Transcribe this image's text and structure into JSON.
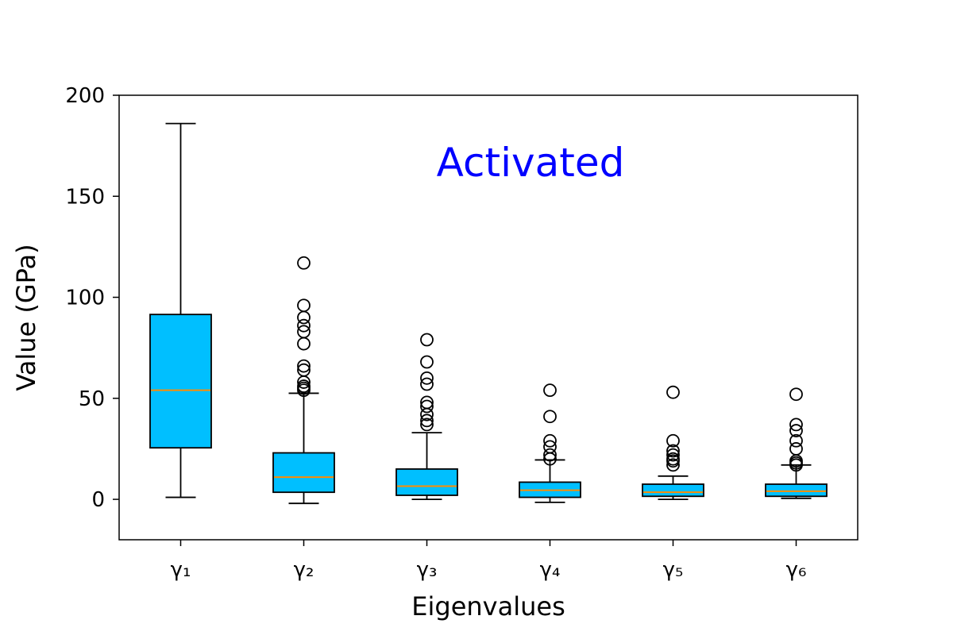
{
  "chart_data": {
    "type": "box",
    "xlabel": "Eigenvalues",
    "ylabel": "Value (GPa)",
    "annotation": "Activated",
    "ylim": [
      -20,
      200
    ],
    "yticks": [
      0,
      50,
      100,
      150,
      200
    ],
    "grid": false,
    "legend": "none",
    "box_color": "#00bfff",
    "median_color": "#ff8c00",
    "annotation_color": "#0000ff",
    "categories": [
      "γ₁",
      "γ₂",
      "γ₃",
      "γ₄",
      "γ₅",
      "γ₆"
    ],
    "boxes": [
      {
        "whisker_low": 1,
        "q1": 25.5,
        "median": 54,
        "q3": 91.5,
        "whisker_high": 186,
        "outliers": []
      },
      {
        "whisker_low": -2,
        "q1": 3.5,
        "median": 11,
        "q3": 23,
        "whisker_high": 52.5,
        "outliers": [
          117,
          96,
          90,
          86,
          83,
          77,
          66,
          64,
          58,
          56,
          55,
          54
        ]
      },
      {
        "whisker_low": 0,
        "q1": 2,
        "median": 6.5,
        "q3": 15,
        "whisker_high": 33,
        "outliers": [
          79,
          68,
          60,
          57,
          48,
          46,
          42,
          39,
          37
        ]
      },
      {
        "whisker_low": -1.5,
        "q1": 1,
        "median": 4.5,
        "q3": 8.5,
        "whisker_high": 19.5,
        "outliers": [
          54,
          41,
          29,
          26,
          22,
          20
        ]
      },
      {
        "whisker_low": 0,
        "q1": 1.5,
        "median": 3.5,
        "q3": 7.5,
        "whisker_high": 11.5,
        "outliers": [
          53,
          29,
          24,
          22,
          20,
          19,
          17
        ]
      },
      {
        "whisker_low": 0.5,
        "q1": 1.5,
        "median": 4,
        "q3": 7.5,
        "whisker_high": 17,
        "outliers": [
          52,
          37,
          34,
          29,
          25,
          19,
          18,
          17
        ]
      }
    ]
  }
}
